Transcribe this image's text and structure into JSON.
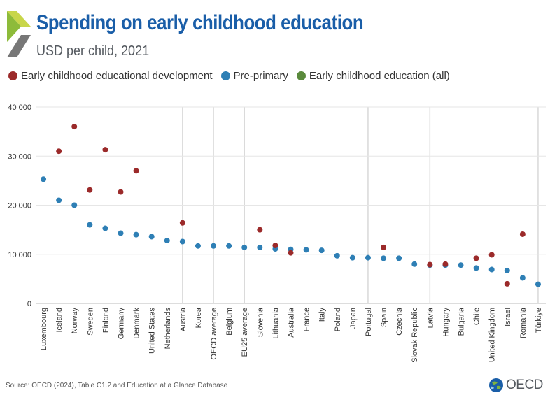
{
  "header": {
    "title": "Spending on early childhood education",
    "subtitle": "USD per child, 2021"
  },
  "legend": [
    {
      "label": "Early childhood educational development",
      "color": "#9b2a2a"
    },
    {
      "label": "Pre-primary",
      "color": "#2e7fb5"
    },
    {
      "label": "Early childhood education (all)",
      "color": "#5a8a3c"
    }
  ],
  "footer": {
    "source": "Source: OECD (2024), Table C1.2 and Education at a Glance Database",
    "brand": "OECD"
  },
  "chart_data": {
    "type": "scatter",
    "title": "Spending on early childhood education",
    "ylabel": "",
    "xlabel": "",
    "ylim": [
      0,
      40000
    ],
    "yticks": [
      0,
      10000,
      20000,
      30000,
      40000
    ],
    "y_tick_labels": [
      "0",
      "10 000",
      "20 000",
      "30 000",
      "40 000"
    ],
    "grid": true,
    "legend_position": "top",
    "categories": [
      "Luxembourg",
      "Iceland",
      "Norway",
      "Sweden",
      "Finland",
      "Germany",
      "Denmark",
      "United States",
      "Netherlands",
      "Austria",
      "Korea",
      "OECD average",
      "Belgium",
      "EU25 average",
      "Slovenia",
      "Lithuania",
      "Australia",
      "France",
      "Italy",
      "Poland",
      "Japan",
      "Portugal",
      "Spain",
      "Czechia",
      "Slovak Republic",
      "Latvia",
      "Hungary",
      "Bulgaria",
      "Chile",
      "United Kingdom",
      "Israel",
      "Romania",
      "Türkiye"
    ],
    "highlighted_categories": [
      "Austria",
      "OECD average",
      "EU25 average",
      "Portugal",
      "Latvia",
      "Türkiye"
    ],
    "series": [
      {
        "name": "Early childhood educational development",
        "color": "#9b2a2a",
        "values": [
          null,
          31000,
          36000,
          23100,
          31300,
          22700,
          27000,
          null,
          null,
          16400,
          null,
          null,
          null,
          null,
          15000,
          11800,
          10300,
          null,
          null,
          null,
          null,
          null,
          11400,
          null,
          null,
          7900,
          8000,
          null,
          9200,
          9900,
          4000,
          14100,
          null
        ]
      },
      {
        "name": "Pre-primary",
        "color": "#2e7fb5",
        "values": [
          25300,
          21000,
          20000,
          16000,
          15300,
          14300,
          14000,
          13600,
          12800,
          12600,
          11700,
          11700,
          11700,
          11400,
          11400,
          11100,
          11000,
          10900,
          10800,
          9700,
          9300,
          9300,
          9200,
          9200,
          8000,
          7800,
          7800,
          7800,
          7200,
          6900,
          6700,
          5200,
          3900
        ]
      },
      {
        "name": "Early childhood education (all)",
        "color": "#5a8a3c",
        "values": [
          null,
          null,
          null,
          null,
          null,
          null,
          null,
          null,
          null,
          null,
          null,
          null,
          null,
          null,
          null,
          null,
          null,
          null,
          null,
          null,
          null,
          null,
          null,
          null,
          null,
          null,
          null,
          null,
          null,
          null,
          null,
          null,
          null
        ]
      }
    ]
  }
}
